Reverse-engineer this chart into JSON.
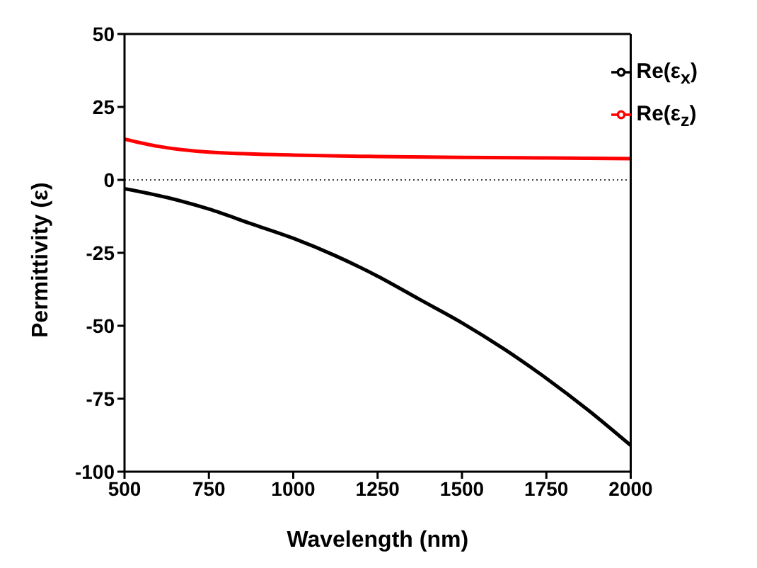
{
  "chart_data": {
    "type": "line",
    "xlabel": "Wavelength (nm)",
    "ylabel": "Permittivity (ε)",
    "xlim": [
      500,
      2000
    ],
    "xticks": [
      500,
      750,
      1000,
      1250,
      1500,
      1750,
      2000
    ],
    "ylim": [
      -100,
      50
    ],
    "yticks": [
      -100,
      -75,
      -50,
      -25,
      0,
      25,
      50
    ],
    "series": [
      {
        "name": "Re(ε$_{x}$)",
        "color": "#000000",
        "x": [
          500,
          625,
          750,
          875,
          1000,
          1125,
          1250,
          1375,
          1500,
          1625,
          1750,
          1875,
          2000
        ],
        "values": [
          -3,
          -6,
          -10,
          -15,
          -20,
          -26,
          -33,
          -41,
          -49,
          -58,
          -68,
          -79,
          -91
        ]
      },
      {
        "name": "Re(ε$_{z}$)",
        "color": "#ff0000",
        "x": [
          500,
          600,
          750,
          1000,
          1250,
          1500,
          1750,
          2000
        ],
        "values": [
          14,
          11.5,
          9.5,
          8.5,
          8,
          7.7,
          7.5,
          7.3
        ]
      }
    ],
    "ref_lines": [
      {
        "axis": "y",
        "value": 0,
        "color": "#000000",
        "line_style": "dotted"
      }
    ],
    "legend": "top right",
    "marker": "none",
    "line_style": "solid"
  }
}
